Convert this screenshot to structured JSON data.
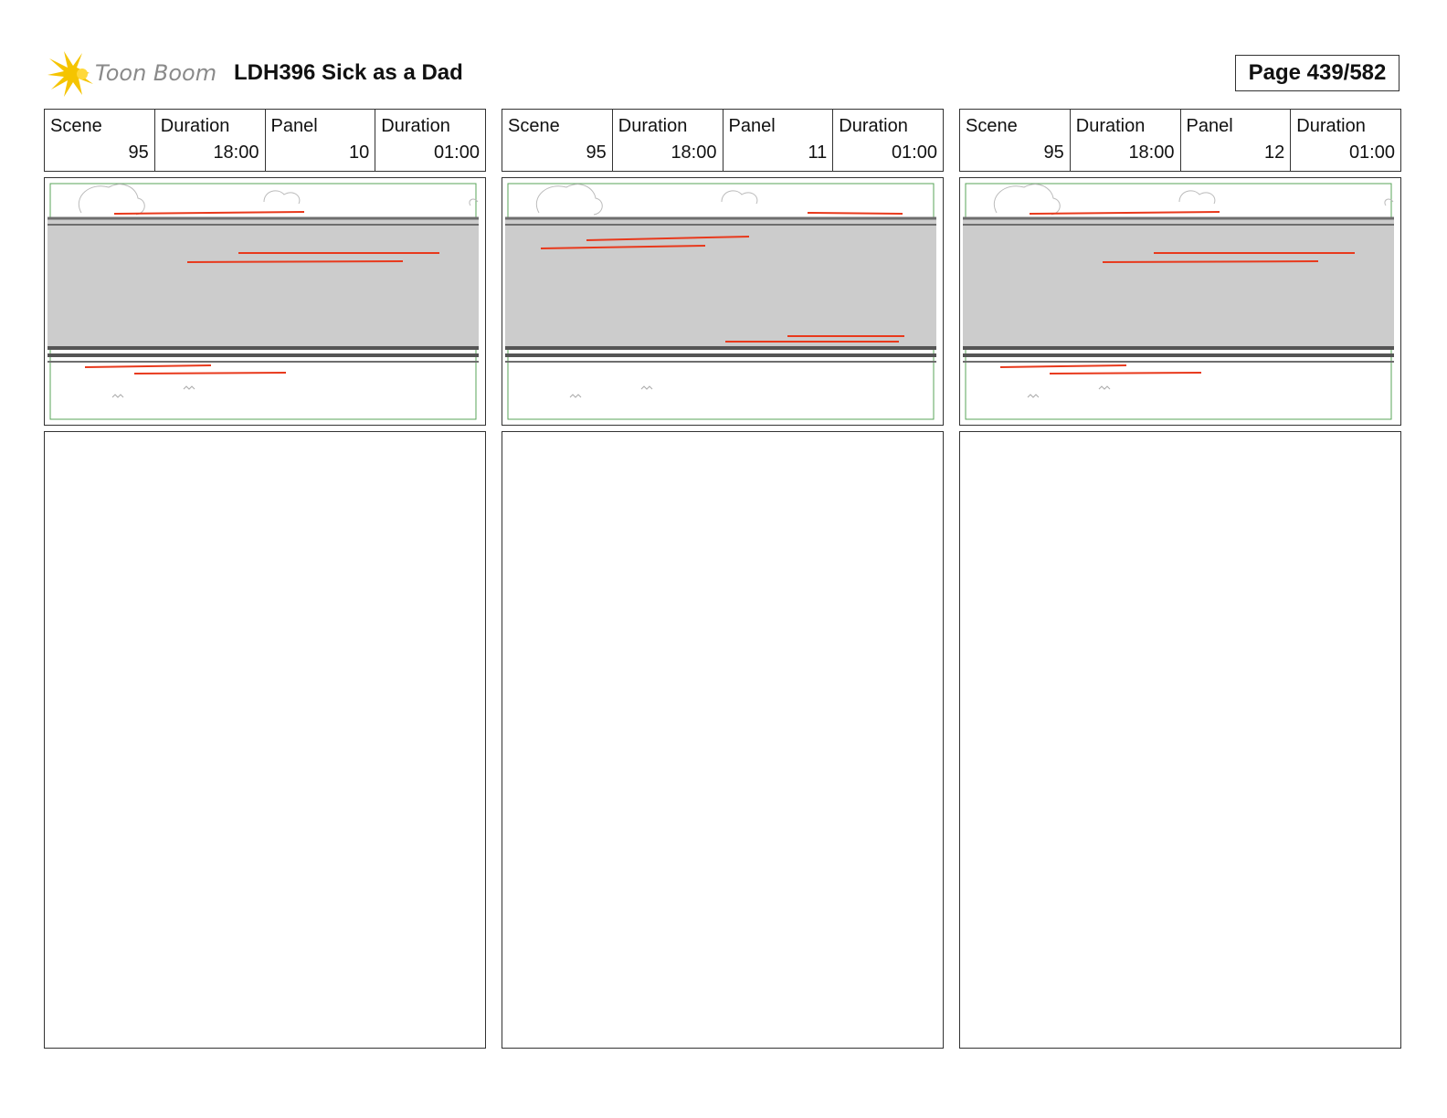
{
  "header": {
    "brand": "Toon Boom",
    "title": "LDH396 Sick as a Dad",
    "page_label": "Page 439/582"
  },
  "panels": [
    {
      "scene_label": "Scene",
      "scene": "95",
      "scene_duration_label": "Duration",
      "scene_duration": "18:00",
      "panel_label": "Panel",
      "panel": "10",
      "panel_duration_label": "Duration",
      "panel_duration": "01:00",
      "notes": ""
    },
    {
      "scene_label": "Scene",
      "scene": "95",
      "scene_duration_label": "Duration",
      "scene_duration": "18:00",
      "panel_label": "Panel",
      "panel": "11",
      "panel_duration_label": "Duration",
      "panel_duration": "01:00",
      "notes": ""
    },
    {
      "scene_label": "Scene",
      "scene": "95",
      "scene_duration_label": "Duration",
      "scene_duration": "18:00",
      "panel_label": "Panel",
      "panel": "12",
      "panel_duration_label": "Duration",
      "panel_duration": "01:00",
      "notes": ""
    }
  ],
  "colors": {
    "logo_star": "#f5c400",
    "speed_lines": "#e8391c",
    "road": "#cccccc",
    "safe_area": "#5aa55a"
  }
}
